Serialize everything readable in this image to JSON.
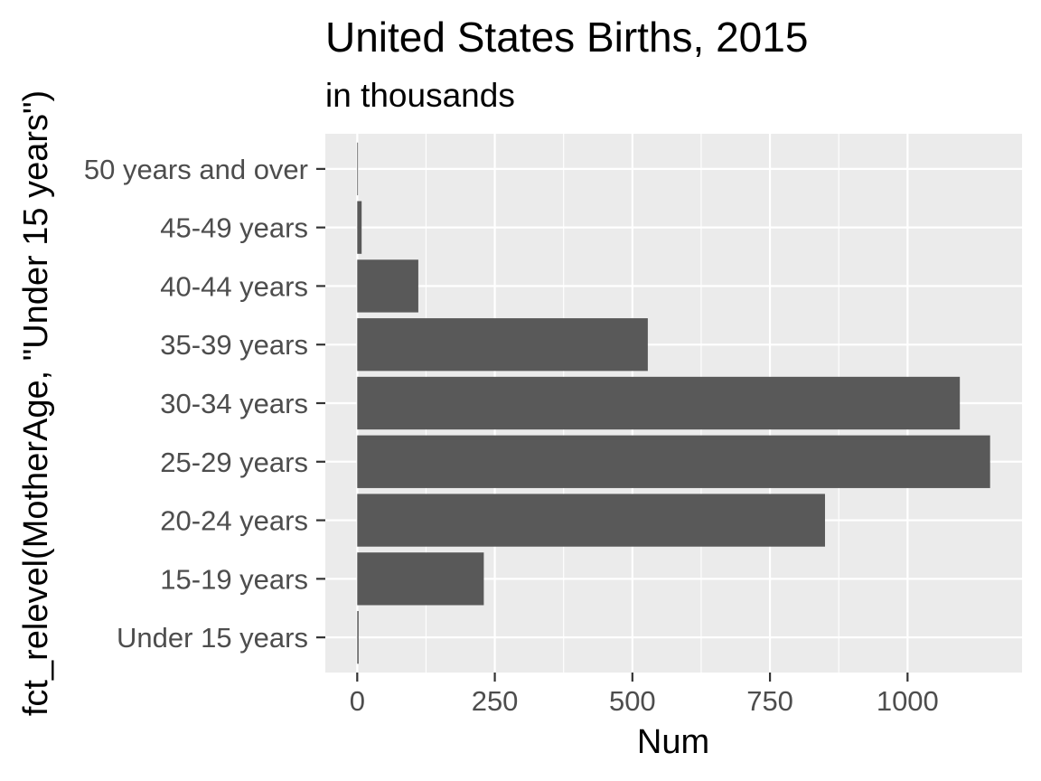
{
  "chart_data": {
    "type": "bar",
    "orientation": "horizontal",
    "title": "United States Births, 2015",
    "subtitle": "in thousands",
    "xlabel": "Num",
    "ylabel": "fct_relevel(MotherAge, \"Under 15 years\")",
    "categories": [
      "Under 15 years",
      "15-19 years",
      "20-24 years",
      "25-29 years",
      "30-34 years",
      "35-39 years",
      "40-44 years",
      "45-49 years",
      "50 years and over"
    ],
    "values": [
      2.5,
      230,
      850,
      1150,
      1095,
      528,
      111,
      8,
      0.7
    ],
    "xlim": [
      -58,
      1208
    ],
    "x_ticks": [
      0,
      250,
      500,
      750,
      1000
    ],
    "x_tick_labels": [
      "0",
      "250",
      "500",
      "750",
      "1000"
    ],
    "grid": true,
    "bar_color": "#595959",
    "panel_color": "#ebebeb",
    "grid_color": "#ffffff"
  }
}
